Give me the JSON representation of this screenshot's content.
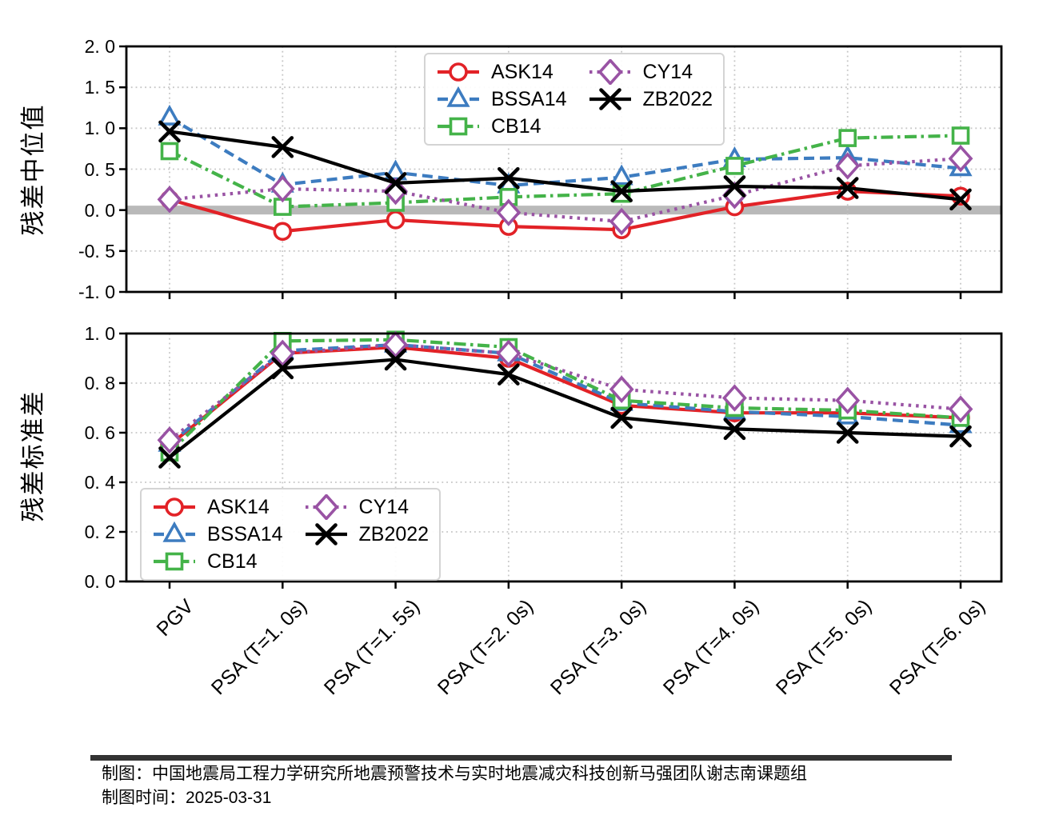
{
  "caption": {
    "line1": "制图：中国地震局工程力学研究所地震预警技术与实时地震减灾科技创新马强团队谢志南课题组",
    "line2": "制图时间：2025-03-31"
  },
  "chart_data": [
    {
      "type": "line",
      "title": "",
      "xlabel": "",
      "ylabel": "残差中位值",
      "ylim": [
        -1.0,
        2.0
      ],
      "ytick_values": [
        2.0,
        1.5,
        1.0,
        0.5,
        0.0,
        -0.5,
        -1.0
      ],
      "ytick_labels": [
        "2. 0",
        "1. 5",
        "1. 0",
        "0. 5",
        "0. 0",
        "-0. 5",
        "-1. 0"
      ],
      "categories": [
        "PGV",
        "PSA (T=1. 0s)",
        "PSA (T=1. 5s)",
        "PSA (T=2. 0s)",
        "PSA (T=3. 0s)",
        "PSA (T=4. 0s)",
        "PSA (T=5. 0s)",
        "PSA (T=6. 0s)"
      ],
      "grid": true,
      "zero_band": true,
      "zero_band_color": "#b9b9b9",
      "legend_position": "upper center",
      "series": [
        {
          "name": "ASK14",
          "color": "#e22227",
          "linestyle": "solid",
          "marker": "circle",
          "values": [
            0.13,
            -0.26,
            -0.12,
            -0.2,
            -0.24,
            0.04,
            0.23,
            0.17
          ]
        },
        {
          "name": "BSSA14",
          "color": "#3d7cc0",
          "linestyle": "dashed",
          "marker": "triangle",
          "values": [
            1.13,
            0.31,
            0.46,
            0.3,
            0.4,
            0.62,
            0.64,
            0.51
          ]
        },
        {
          "name": "CB14",
          "color": "#44b349",
          "linestyle": "dashdot",
          "marker": "square",
          "values": [
            0.72,
            0.04,
            0.09,
            0.16,
            0.2,
            0.54,
            0.88,
            0.91
          ]
        },
        {
          "name": "CY14",
          "color": "#9953a4",
          "linestyle": "dotted",
          "marker": "diamond",
          "values": [
            0.13,
            0.26,
            0.23,
            -0.03,
            -0.14,
            0.18,
            0.54,
            0.63
          ]
        },
        {
          "name": "ZB2022",
          "color": "#000000",
          "linestyle": "solid",
          "marker": "x",
          "values": [
            0.96,
            0.77,
            0.33,
            0.39,
            0.23,
            0.29,
            0.27,
            0.13
          ]
        }
      ]
    },
    {
      "type": "line",
      "title": "",
      "xlabel": "",
      "ylabel": "残差标准差",
      "ylim": [
        0.0,
        1.0
      ],
      "ytick_values": [
        1.0,
        0.8,
        0.6,
        0.4,
        0.2,
        0.0
      ],
      "ytick_labels": [
        "1. 0",
        "0. 8",
        "0. 6",
        "0. 4",
        "0. 2",
        "0. 0"
      ],
      "categories": [
        "PGV",
        "PSA (T=1. 0s)",
        "PSA (T=1. 5s)",
        "PSA (T=2. 0s)",
        "PSA (T=3. 0s)",
        "PSA (T=4. 0s)",
        "PSA (T=5. 0s)",
        "PSA (T=6. 0s)"
      ],
      "grid": true,
      "zero_band": false,
      "legend_position": "lower left",
      "series": [
        {
          "name": "ASK14",
          "color": "#e22227",
          "linestyle": "solid",
          "marker": "circle",
          "values": [
            0.55,
            0.92,
            0.945,
            0.9,
            0.71,
            0.68,
            0.68,
            0.66
          ]
        },
        {
          "name": "BSSA14",
          "color": "#3d7cc0",
          "linestyle": "dashed",
          "marker": "triangle",
          "values": [
            0.555,
            0.93,
            0.955,
            0.92,
            0.72,
            0.685,
            0.665,
            0.63
          ]
        },
        {
          "name": "CB14",
          "color": "#44b349",
          "linestyle": "dashdot",
          "marker": "square",
          "values": [
            0.52,
            0.97,
            0.975,
            0.945,
            0.73,
            0.7,
            0.69,
            0.66
          ]
        },
        {
          "name": "CY14",
          "color": "#9953a4",
          "linestyle": "dotted",
          "marker": "diamond",
          "values": [
            0.57,
            0.92,
            0.955,
            0.92,
            0.775,
            0.74,
            0.73,
            0.695
          ]
        },
        {
          "name": "ZB2022",
          "color": "#000000",
          "linestyle": "solid",
          "marker": "x",
          "values": [
            0.5,
            0.86,
            0.895,
            0.835,
            0.66,
            0.615,
            0.6,
            0.585
          ]
        }
      ]
    }
  ],
  "style": {
    "grid_color": "#c6c6c6",
    "spine_color": "#000000"
  }
}
